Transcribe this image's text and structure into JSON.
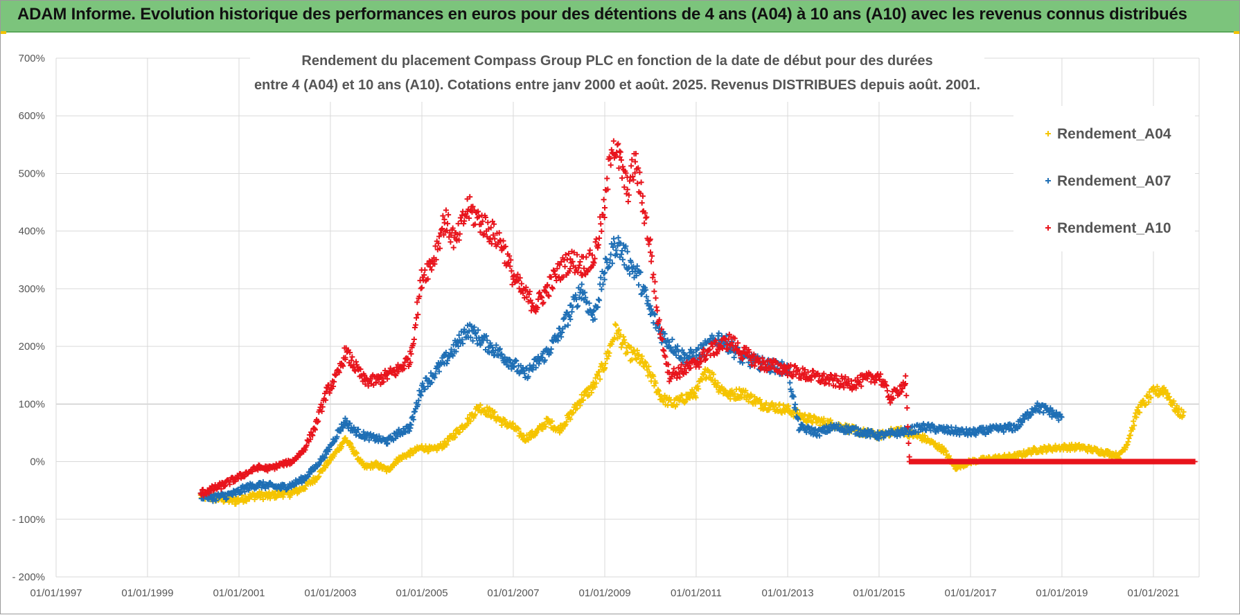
{
  "header": {
    "title": "ADAM Informe. Evolution historique des performances en euros pour des détentions de 4 ans (A04) à 10 ans (A10) avec les revenus connus distribués"
  },
  "colors": {
    "banner": "#7cc47c",
    "A04": "#f5c400",
    "A07": "#1f6fb5",
    "A10": "#e8141c",
    "grid": "#d9d9d9"
  },
  "chart_data": {
    "type": "scatter",
    "title_lines": [
      "Rendement du placement Compass Group PLC en fonction de la date de début pour des durées",
      "entre 4 (A04) et 10 ans (A10).  Cotations entre janv 2000 et août. 2025. Revenus DISTRIBUES depuis août. 2001."
    ],
    "x_type": "date",
    "xlim": [
      "1997-01-01",
      "2022-01-01"
    ],
    "x_ticks": [
      "01/01/1997",
      "01/01/1999",
      "01/01/2001",
      "01/01/2003",
      "01/01/2005",
      "01/01/2007",
      "01/01/2009",
      "01/01/2011",
      "01/01/2013",
      "01/01/2015",
      "01/01/2017",
      "01/01/2019",
      "01/01/2021"
    ],
    "ylim": [
      -200,
      700
    ],
    "y_unit": "%",
    "y_ticks": [
      "700%",
      "600%",
      "500%",
      "400%",
      "300%",
      "200%",
      "100%",
      "0%",
      "- 100%",
      "- 200%"
    ],
    "grid": true,
    "legend_position": "top-right",
    "marker": "+",
    "series": [
      {
        "name": "Rendement_A04",
        "color": "#f5c400",
        "points": [
          [
            "2000-03-01",
            -60
          ],
          [
            "2000-06-01",
            -62
          ],
          [
            "2000-09-01",
            -65
          ],
          [
            "2000-12-01",
            -68
          ],
          [
            "2001-03-01",
            -62
          ],
          [
            "2001-06-01",
            -58
          ],
          [
            "2001-09-01",
            -60
          ],
          [
            "2001-12-01",
            -55
          ],
          [
            "2002-03-01",
            -55
          ],
          [
            "2002-06-01",
            -45
          ],
          [
            "2002-09-01",
            -30
          ],
          [
            "2002-12-01",
            -5
          ],
          [
            "2003-03-01",
            20
          ],
          [
            "2003-05-01",
            40
          ],
          [
            "2003-07-01",
            20
          ],
          [
            "2003-10-01",
            -10
          ],
          [
            "2004-01-01",
            -5
          ],
          [
            "2004-04-01",
            -15
          ],
          [
            "2004-07-01",
            5
          ],
          [
            "2004-10-01",
            15
          ],
          [
            "2005-01-01",
            25
          ],
          [
            "2005-04-01",
            20
          ],
          [
            "2005-07-01",
            30
          ],
          [
            "2005-10-01",
            50
          ],
          [
            "2006-01-01",
            70
          ],
          [
            "2006-04-01",
            95
          ],
          [
            "2006-07-01",
            85
          ],
          [
            "2006-10-01",
            70
          ],
          [
            "2007-01-01",
            60
          ],
          [
            "2007-04-01",
            40
          ],
          [
            "2007-07-01",
            50
          ],
          [
            "2007-10-01",
            70
          ],
          [
            "2008-01-01",
            55
          ],
          [
            "2008-04-01",
            80
          ],
          [
            "2008-07-01",
            110
          ],
          [
            "2008-10-01",
            130
          ],
          [
            "2009-01-01",
            170
          ],
          [
            "2009-04-01",
            230
          ],
          [
            "2009-07-01",
            190
          ],
          [
            "2009-10-01",
            180
          ],
          [
            "2010-01-01",
            150
          ],
          [
            "2010-04-01",
            110
          ],
          [
            "2010-07-01",
            100
          ],
          [
            "2010-10-01",
            110
          ],
          [
            "2011-01-01",
            120
          ],
          [
            "2011-04-01",
            160
          ],
          [
            "2011-07-01",
            130
          ],
          [
            "2011-10-01",
            115
          ],
          [
            "2012-01-01",
            120
          ],
          [
            "2012-06-01",
            100
          ],
          [
            "2013-01-01",
            90
          ],
          [
            "2013-06-01",
            75
          ],
          [
            "2014-01-01",
            65
          ],
          [
            "2014-06-01",
            55
          ],
          [
            "2015-01-01",
            45
          ],
          [
            "2015-06-01",
            55
          ],
          [
            "2016-01-01",
            40
          ],
          [
            "2016-06-01",
            20
          ],
          [
            "2016-09-01",
            -10
          ],
          [
            "2017-01-01",
            0
          ],
          [
            "2017-06-01",
            5
          ],
          [
            "2018-01-01",
            10
          ],
          [
            "2018-06-01",
            20
          ],
          [
            "2019-01-01",
            25
          ],
          [
            "2019-06-01",
            25
          ],
          [
            "2020-01-01",
            15
          ],
          [
            "2020-04-01",
            10
          ],
          [
            "2020-06-01",
            30
          ],
          [
            "2020-09-01",
            90
          ],
          [
            "2021-01-01",
            120
          ],
          [
            "2021-04-01",
            125
          ],
          [
            "2021-07-01",
            90
          ],
          [
            "2021-09-01",
            80
          ]
        ]
      },
      {
        "name": "Rendement_A07",
        "color": "#1f6fb5",
        "points": [
          [
            "2000-03-01",
            -58
          ],
          [
            "2000-06-01",
            -62
          ],
          [
            "2000-09-01",
            -60
          ],
          [
            "2000-12-01",
            -55
          ],
          [
            "2001-03-01",
            -45
          ],
          [
            "2001-06-01",
            -40
          ],
          [
            "2001-09-01",
            -42
          ],
          [
            "2001-12-01",
            -45
          ],
          [
            "2002-03-01",
            -40
          ],
          [
            "2002-06-01",
            -30
          ],
          [
            "2002-09-01",
            -10
          ],
          [
            "2002-12-01",
            15
          ],
          [
            "2003-03-01",
            50
          ],
          [
            "2003-05-01",
            70
          ],
          [
            "2003-07-01",
            55
          ],
          [
            "2003-10-01",
            45
          ],
          [
            "2004-01-01",
            40
          ],
          [
            "2004-04-01",
            35
          ],
          [
            "2004-07-01",
            50
          ],
          [
            "2004-10-01",
            60
          ],
          [
            "2005-01-01",
            130
          ],
          [
            "2005-04-01",
            150
          ],
          [
            "2005-07-01",
            175
          ],
          [
            "2005-10-01",
            200
          ],
          [
            "2006-01-01",
            230
          ],
          [
            "2006-04-01",
            215
          ],
          [
            "2006-07-01",
            200
          ],
          [
            "2006-10-01",
            185
          ],
          [
            "2007-01-01",
            170
          ],
          [
            "2007-04-01",
            150
          ],
          [
            "2007-07-01",
            170
          ],
          [
            "2007-10-01",
            190
          ],
          [
            "2008-01-01",
            220
          ],
          [
            "2008-04-01",
            260
          ],
          [
            "2008-07-01",
            300
          ],
          [
            "2008-10-01",
            250
          ],
          [
            "2009-01-01",
            330
          ],
          [
            "2009-04-01",
            380
          ],
          [
            "2009-07-01",
            350
          ],
          [
            "2009-10-01",
            320
          ],
          [
            "2010-01-01",
            260
          ],
          [
            "2010-04-01",
            220
          ],
          [
            "2010-07-01",
            200
          ],
          [
            "2010-10-01",
            180
          ],
          [
            "2011-01-01",
            185
          ],
          [
            "2011-04-01",
            200
          ],
          [
            "2011-07-01",
            215
          ],
          [
            "2011-10-01",
            200
          ],
          [
            "2012-01-01",
            180
          ],
          [
            "2012-06-01",
            170
          ],
          [
            "2013-01-01",
            160
          ],
          [
            "2013-04-01",
            60
          ],
          [
            "2013-09-01",
            50
          ],
          [
            "2014-01-01",
            60
          ],
          [
            "2014-06-01",
            55
          ],
          [
            "2015-01-01",
            45
          ],
          [
            "2015-06-01",
            50
          ],
          [
            "2016-01-01",
            60
          ],
          [
            "2016-06-01",
            55
          ],
          [
            "2017-01-01",
            50
          ],
          [
            "2017-06-01",
            55
          ],
          [
            "2018-01-01",
            60
          ],
          [
            "2018-06-01",
            95
          ],
          [
            "2018-09-01",
            90
          ],
          [
            "2019-01-01",
            75
          ]
        ]
      },
      {
        "name": "Rendement_A10",
        "color": "#e8141c",
        "points": [
          [
            "2000-03-01",
            -55
          ],
          [
            "2000-06-01",
            -48
          ],
          [
            "2000-09-01",
            -40
          ],
          [
            "2000-12-01",
            -30
          ],
          [
            "2001-03-01",
            -20
          ],
          [
            "2001-06-01",
            -10
          ],
          [
            "2001-09-01",
            -12
          ],
          [
            "2001-12-01",
            -5
          ],
          [
            "2002-03-01",
            0
          ],
          [
            "2002-06-01",
            20
          ],
          [
            "2002-09-01",
            60
          ],
          [
            "2002-12-01",
            120
          ],
          [
            "2003-03-01",
            150
          ],
          [
            "2003-05-01",
            190
          ],
          [
            "2003-07-01",
            170
          ],
          [
            "2003-10-01",
            140
          ],
          [
            "2004-01-01",
            140
          ],
          [
            "2004-04-01",
            150
          ],
          [
            "2004-07-01",
            160
          ],
          [
            "2004-10-01",
            180
          ],
          [
            "2005-01-01",
            320
          ],
          [
            "2005-04-01",
            350
          ],
          [
            "2005-07-01",
            420
          ],
          [
            "2005-10-01",
            380
          ],
          [
            "2006-01-01",
            440
          ],
          [
            "2006-04-01",
            420
          ],
          [
            "2006-07-01",
            400
          ],
          [
            "2006-10-01",
            380
          ],
          [
            "2007-01-01",
            320
          ],
          [
            "2007-04-01",
            290
          ],
          [
            "2007-07-01",
            270
          ],
          [
            "2007-10-01",
            300
          ],
          [
            "2008-01-01",
            330
          ],
          [
            "2008-04-01",
            350
          ],
          [
            "2008-07-01",
            340
          ],
          [
            "2008-10-01",
            350
          ],
          [
            "2009-01-01",
            440
          ],
          [
            "2009-03-01",
            560
          ],
          [
            "2009-05-01",
            520
          ],
          [
            "2009-07-01",
            470
          ],
          [
            "2009-09-01",
            520
          ],
          [
            "2009-11-01",
            450
          ],
          [
            "2010-01-01",
            370
          ],
          [
            "2010-03-01",
            250
          ],
          [
            "2010-06-01",
            150
          ],
          [
            "2010-10-01",
            160
          ],
          [
            "2011-01-01",
            170
          ],
          [
            "2011-04-01",
            190
          ],
          [
            "2011-07-01",
            200
          ],
          [
            "2011-10-01",
            210
          ],
          [
            "2012-01-01",
            190
          ],
          [
            "2012-06-01",
            170
          ],
          [
            "2013-01-01",
            160
          ],
          [
            "2013-06-01",
            150
          ],
          [
            "2014-01-01",
            140
          ],
          [
            "2014-06-01",
            135
          ],
          [
            "2015-01-01",
            150
          ],
          [
            "2015-04-01",
            110
          ],
          [
            "2015-07-01",
            130
          ],
          [
            "2015-08-01",
            140
          ],
          [
            "2015-09-01",
            0
          ],
          [
            "2016-01-01",
            0
          ],
          [
            "2017-01-01",
            0
          ],
          [
            "2018-01-01",
            0
          ],
          [
            "2019-01-01",
            0
          ],
          [
            "2020-01-01",
            0
          ],
          [
            "2021-01-01",
            0
          ],
          [
            "2021-12-01",
            0
          ]
        ]
      }
    ]
  }
}
